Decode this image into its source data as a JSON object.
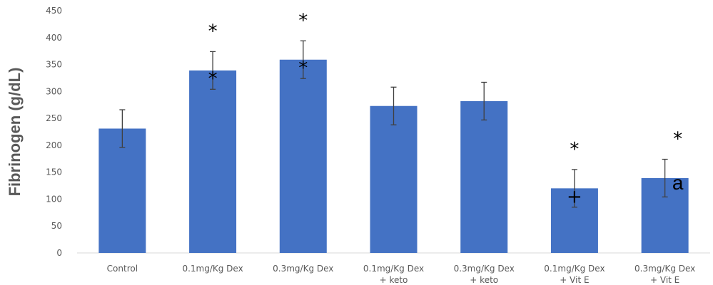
{
  "chart_data": {
    "type": "bar",
    "title": "",
    "xlabel": "",
    "ylabel": "Fibrinogen (g/dL)",
    "ylim": [
      0,
      450
    ],
    "yticks": [
      0,
      50,
      100,
      150,
      200,
      250,
      300,
      350,
      400,
      450
    ],
    "grid": false,
    "legend": "none",
    "categories": [
      [
        "Control"
      ],
      [
        "0.1mg/Kg Dex"
      ],
      [
        "0.3mg/Kg Dex"
      ],
      [
        "0.1mg/Kg Dex",
        "+ keto"
      ],
      [
        "0.3mg/Kg Dex",
        "+ keto"
      ],
      [
        "0.1mg/Kg Dex",
        "+ Vit E"
      ],
      [
        "0.3mg/Kg Dex",
        "+ Vit E"
      ]
    ],
    "values": [
      231,
      339,
      359,
      273,
      282,
      120,
      139
    ],
    "error": [
      35,
      35,
      35,
      35,
      35,
      35,
      35
    ],
    "bar_color": "#4472C4",
    "annotations": [
      {
        "category_index": 1,
        "symbols": [
          "*",
          "*"
        ]
      },
      {
        "category_index": 2,
        "symbols": [
          "*",
          "*"
        ]
      },
      {
        "category_index": 5,
        "symbols": [
          "*",
          "+"
        ]
      },
      {
        "category_index": 6,
        "symbols": [
          "*",
          "a"
        ]
      }
    ]
  }
}
